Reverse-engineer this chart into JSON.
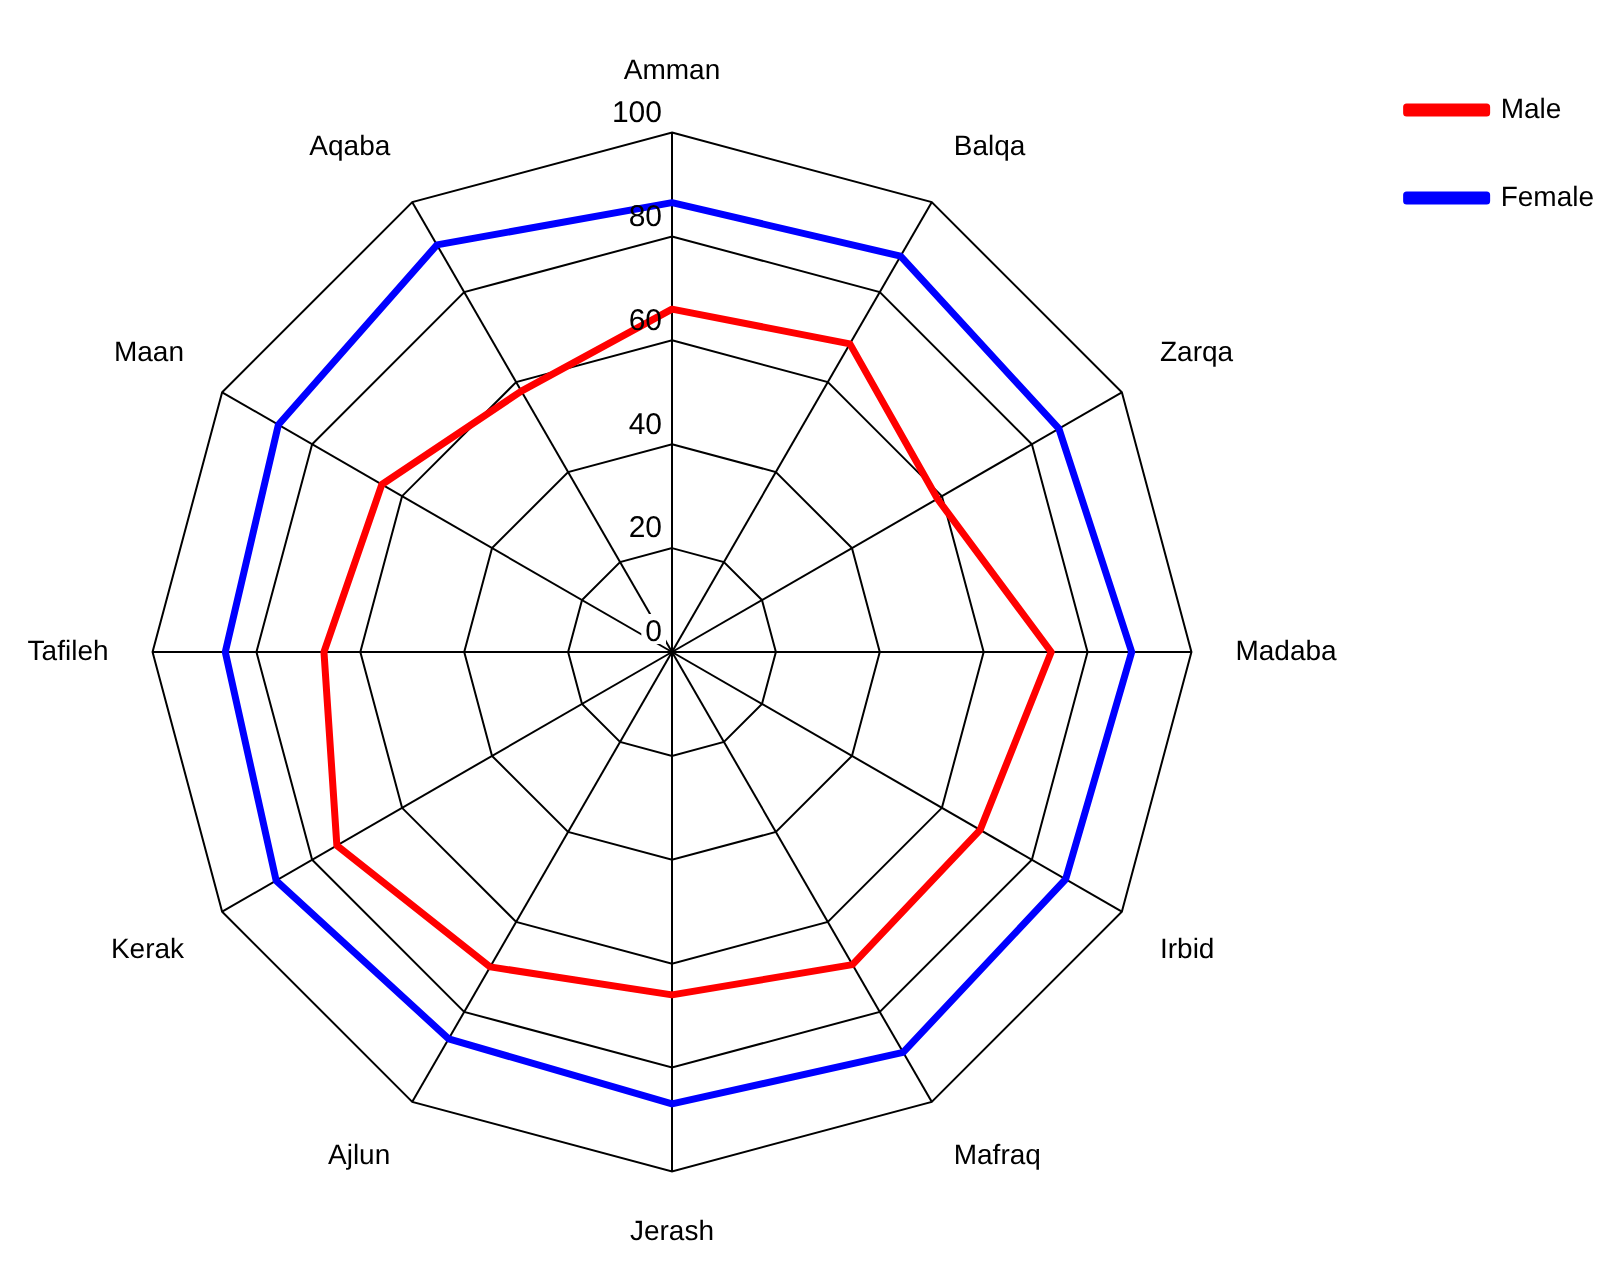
{
  "chart_data": {
    "type": "radar",
    "categories": [
      "Amman",
      "Balqa",
      "Zarqa",
      "Madaba",
      "Irbid",
      "Mafraq",
      "Jerash",
      "Ajlun",
      "Kerak",
      "Tafileh",
      "Maan",
      "Aqaba"
    ],
    "series": [
      {
        "name": "Male",
        "color": "#ff0000",
        "values": [
          66,
          68.5,
          59,
          73,
          68.5,
          69.5,
          66,
          70,
          74.5,
          67,
          64.5,
          58
        ]
      },
      {
        "name": "Female",
        "color": "#0000ff",
        "values": [
          86.5,
          88,
          86,
          88.5,
          87.5,
          89,
          87,
          86,
          88,
          86,
          87.5,
          90.5
        ]
      }
    ],
    "ylim": [
      0,
      100
    ],
    "yticks": [
      0,
      20,
      40,
      60,
      80,
      100
    ],
    "legend": "top right",
    "marker": "none",
    "line_style": "solid",
    "grid": true
  }
}
